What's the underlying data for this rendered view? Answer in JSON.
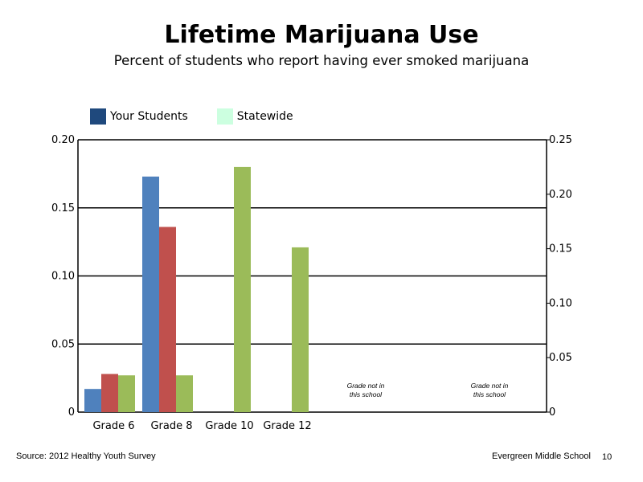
{
  "title": "Lifetime Marijuana Use",
  "subtitle": "Percent of students who report having ever smoked marijuana",
  "legend": [
    {
      "label": "Your Students",
      "color": "#1F497D"
    },
    {
      "label": "Statewide",
      "color": "#CCFFE0"
    }
  ],
  "footer": {
    "source": "Source: 2012 Healthy Youth Survey",
    "school": "Evergreen Middle School",
    "page_number": "10"
  },
  "chart_data": {
    "type": "bar",
    "categories": [
      "Grade 6",
      "Grade 8",
      "Grade 10",
      "Grade 12"
    ],
    "series": [
      {
        "color": "#4F81BD",
        "values": [
          0.017,
          0.173,
          null,
          null
        ]
      },
      {
        "color": "#C0504D",
        "values": [
          0.028,
          0.136,
          null,
          null
        ]
      },
      {
        "color": "#9BBB59",
        "values": [
          0.027,
          0.027,
          0.18,
          0.121
        ]
      }
    ],
    "y_left": {
      "ylim": [
        0,
        0.2
      ],
      "ticks": [
        "0",
        "0.05",
        "0.10",
        "0.15",
        "0.20"
      ]
    },
    "y_right": {
      "ylim": [
        0,
        0.25
      ],
      "ticks": [
        "0",
        "0.05",
        "0.10",
        "0.15",
        "0.20",
        "0.25"
      ]
    },
    "grid": true,
    "notes": [
      {
        "line1": "Grade not in",
        "line2": "this school"
      },
      {
        "line1": "Grade not in",
        "line2": "this school"
      }
    ]
  }
}
